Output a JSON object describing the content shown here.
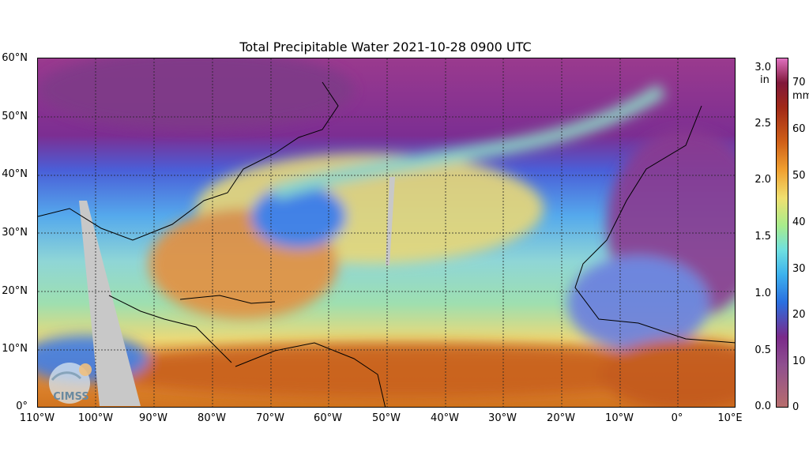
{
  "title": "Total Precipitable Water  2021-10-28 0900 UTC",
  "latitude_labels": [
    "60°N",
    "50°N",
    "40°N",
    "30°N",
    "20°N",
    "10°N",
    "0°"
  ],
  "longitude_labels": [
    "110°W",
    "100°W",
    "90°W",
    "80°W",
    "70°W",
    "60°W",
    "50°W",
    "40°W",
    "30°W",
    "20°W",
    "10°W",
    "0°",
    "10°E"
  ],
  "colorbar": {
    "inch_unit": "in",
    "mm_unit": "mm",
    "inch_ticks": [
      "3.0",
      "2.5",
      "2.0",
      "1.5",
      "1.0",
      "0.5",
      "0.0"
    ],
    "mm_ticks": [
      "70",
      "60",
      "50",
      "40",
      "30",
      "20",
      "10",
      "0"
    ]
  },
  "logo_text": "CIMSS",
  "colors": {
    "ocean_blue": "#2a6fe0",
    "moist": "#d06018",
    "dry": "#7a2a8a"
  }
}
